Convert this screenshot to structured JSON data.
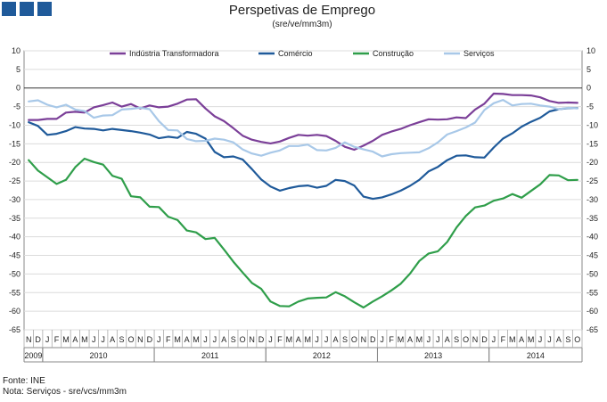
{
  "header": {
    "logo_blocks": [
      "logo-block-1",
      "logo-block-2",
      "logo-block-3"
    ]
  },
  "chart_data": {
    "type": "line",
    "title": "Perspetivas de Emprego",
    "subtitle": "(sre/ve/mm3m)",
    "ylim": [
      -65,
      10
    ],
    "yticks": [
      "10",
      "5",
      "0",
      "-5",
      "-10",
      "-15",
      "-20",
      "-25",
      "-30",
      "-35",
      "-40",
      "-45",
      "-50",
      "-55",
      "-60",
      "-65"
    ],
    "ytick_values": [
      10,
      5,
      0,
      -5,
      -10,
      -15,
      -20,
      -25,
      -30,
      -35,
      -40,
      -45,
      -50,
      -55,
      -60,
      -65
    ],
    "grid": true,
    "legend_position": "top",
    "months": [
      "N",
      "D",
      "J",
      "F",
      "M",
      "A",
      "M",
      "J",
      "J",
      "A",
      "S",
      "O",
      "N",
      "D",
      "J",
      "F",
      "M",
      "A",
      "M",
      "J",
      "J",
      "A",
      "S",
      "O",
      "N",
      "D",
      "J",
      "F",
      "M",
      "A",
      "M",
      "J",
      "J",
      "A",
      "S",
      "O",
      "N",
      "D",
      "J",
      "F",
      "M",
      "A",
      "M",
      "J",
      "J",
      "A",
      "S",
      "O",
      "N",
      "D",
      "J",
      "F",
      "M",
      "A",
      "M",
      "J",
      "J",
      "A",
      "S",
      "O"
    ],
    "years": [
      {
        "label": "2009",
        "start": 0,
        "end": 2
      },
      {
        "label": "2010",
        "start": 2,
        "end": 14
      },
      {
        "label": "2011",
        "start": 14,
        "end": 26
      },
      {
        "label": "2012",
        "start": 26,
        "end": 38
      },
      {
        "label": "2013",
        "start": 38,
        "end": 50
      },
      {
        "label": "2014",
        "start": 50,
        "end": 60
      }
    ],
    "series": [
      {
        "name": "Indústria Transformadora",
        "color": "#7b3f98",
        "values": [
          -8.6,
          -8.6,
          -8.3,
          -8.3,
          -6.6,
          -6.4,
          -6.6,
          -5.2,
          -4.6,
          -3.9,
          -5.0,
          -4.3,
          -5.5,
          -4.7,
          -5.2,
          -5.0,
          -4.2,
          -3.1,
          -3.0,
          -5.5,
          -7.6,
          -8.9,
          -10.8,
          -12.8,
          -13.9,
          -14.5,
          -14.9,
          -14.4,
          -13.4,
          -12.6,
          -12.8,
          -12.6,
          -12.9,
          -14.2,
          -15.8,
          -16.6,
          -15.5,
          -14.2,
          -12.6,
          -11.7,
          -11.0,
          -10.0,
          -9.2,
          -8.4,
          -8.5,
          -8.4,
          -7.9,
          -8.1,
          -5.8,
          -4.2,
          -1.5,
          -1.6,
          -1.9,
          -1.9,
          -2.0,
          -2.5,
          -3.5,
          -4.0,
          -3.9,
          -4.0
        ]
      },
      {
        "name": "Comércio",
        "color": "#1f5a9a",
        "values": [
          -9.2,
          -10.2,
          -12.6,
          -12.3,
          -11.6,
          -10.5,
          -10.9,
          -11.0,
          -11.4,
          -11.0,
          -11.3,
          -11.6,
          -12.0,
          -12.5,
          -13.5,
          -13.1,
          -13.4,
          -11.8,
          -12.3,
          -13.6,
          -17.2,
          -18.6,
          -18.4,
          -19.2,
          -21.8,
          -24.6,
          -26.5,
          -27.6,
          -26.9,
          -26.4,
          -26.2,
          -26.8,
          -26.3,
          -24.7,
          -25.0,
          -26.2,
          -29.2,
          -29.8,
          -29.4,
          -28.6,
          -27.6,
          -26.3,
          -24.7,
          -22.4,
          -21.2,
          -19.4,
          -18.2,
          -18.1,
          -18.6,
          -18.7,
          -16.0,
          -13.6,
          -12.2,
          -10.4,
          -9.1,
          -8.0,
          -6.3,
          -5.7,
          -5.4,
          -5.4
        ]
      },
      {
        "name": "Construção",
        "color": "#2f9e4a",
        "values": [
          -19.4,
          -22.2,
          -24.0,
          -25.8,
          -24.7,
          -21.3,
          -19.0,
          -19.9,
          -20.6,
          -23.6,
          -24.4,
          -29.1,
          -29.4,
          -31.9,
          -32.0,
          -34.6,
          -35.5,
          -38.3,
          -38.8,
          -40.6,
          -40.3,
          -43.4,
          -46.7,
          -49.6,
          -52.4,
          -54.0,
          -57.4,
          -58.6,
          -58.7,
          -57.4,
          -56.6,
          -56.4,
          -56.3,
          -54.9,
          -56.0,
          -57.6,
          -59.0,
          -57.4,
          -56.0,
          -54.4,
          -52.6,
          -49.9,
          -46.5,
          -44.5,
          -43.9,
          -41.4,
          -37.5,
          -34.4,
          -32.1,
          -31.6,
          -30.3,
          -29.7,
          -28.5,
          -29.5,
          -27.7,
          -25.9,
          -23.4,
          -23.5,
          -24.8,
          -24.7
        ]
      },
      {
        "name": "Serviços",
        "color": "#a8c8e8",
        "values": [
          -3.6,
          -3.3,
          -4.5,
          -5.2,
          -4.5,
          -5.8,
          -6.2,
          -8.0,
          -7.4,
          -7.3,
          -5.8,
          -5.6,
          -5.3,
          -5.7,
          -8.9,
          -11.3,
          -11.4,
          -13.7,
          -14.3,
          -14.2,
          -13.6,
          -13.9,
          -14.6,
          -16.5,
          -17.6,
          -18.2,
          -17.4,
          -16.8,
          -15.6,
          -15.6,
          -15.2,
          -16.7,
          -16.8,
          -16.1,
          -14.6,
          -15.8,
          -16.5,
          -17.1,
          -18.4,
          -17.8,
          -17.5,
          -17.4,
          -17.3,
          -16.2,
          -14.6,
          -12.5,
          -11.6,
          -10.6,
          -9.3,
          -5.9,
          -4.1,
          -3.2,
          -4.7,
          -4.3,
          -4.2,
          -4.7,
          -5.0,
          -5.7,
          -5.3,
          -5.5
        ]
      }
    ]
  },
  "footer": {
    "source": "Fonte: INE",
    "note": "Nota: Serviços - sre/vcs/mm3m"
  }
}
